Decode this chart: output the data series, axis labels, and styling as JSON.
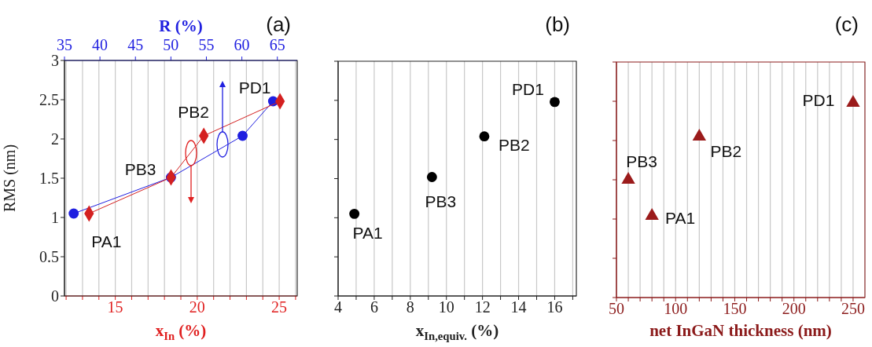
{
  "chart_data": [
    {
      "type": "scatter",
      "title": "(a)",
      "xlabel": "x$_{In}$ (%)",
      "x2label": "R (%)",
      "ylabel": "RMS (nm)",
      "xlim": [
        11.9,
        26.1
      ],
      "xticks": [
        {
          "value": 12,
          "label": null
        },
        {
          "value": 13,
          "label": null
        },
        {
          "value": 14,
          "label": null
        },
        15,
        {
          "value": 16,
          "label": null
        },
        {
          "value": 17,
          "label": null
        },
        {
          "value": 18,
          "label": null
        },
        {
          "value": 19,
          "label": null
        },
        20,
        {
          "value": 21,
          "label": null
        },
        {
          "value": 22,
          "label": null
        },
        {
          "value": 23,
          "label": null
        },
        {
          "value": 24,
          "label": null
        },
        25,
        {
          "value": 26,
          "label": null
        }
      ],
      "x2lim": [
        35,
        67.8
      ],
      "x2ticks": [
        35,
        40,
        45,
        50,
        55,
        60,
        65
      ],
      "ylim": [
        0,
        3
      ],
      "yticks": [
        0,
        0.5,
        1,
        1.5,
        2,
        2.5,
        3
      ],
      "grid": "x",
      "line_style": "solid",
      "series": [
        {
          "type": "line",
          "axis": "x2",
          "marker": "circle",
          "color": "#1f1fe0",
          "x": [
            36.3,
            50,
            60.1,
            64.4
          ],
          "values": [
            1.05,
            1.51,
            2.04,
            2.48
          ]
        },
        {
          "type": "line",
          "marker": "diamond",
          "color": "#d42020",
          "x": [
            13.4,
            18.4,
            20.4,
            25.05
          ],
          "values": [
            1.05,
            1.51,
            2.04,
            2.48
          ]
        }
      ],
      "annotations": [
        {
          "text": "PA1",
          "x": 13.4,
          "y": 1.05
        },
        {
          "text": "PB3",
          "x": 18.4,
          "y": 1.51
        },
        {
          "text": "PB2",
          "x": 20.4,
          "y": 2.04
        },
        {
          "text": "PD1",
          "x": 25.05,
          "y": 2.48
        }
      ]
    },
    {
      "type": "scatter",
      "title": "(b)",
      "xlabel": "x$_{In,equiv.}$ (%)",
      "xlim": [
        4,
        17.2
      ],
      "xticks": [
        4,
        {
          "value": 5,
          "label": null
        },
        6,
        {
          "value": 7,
          "label": null
        },
        8,
        {
          "value": 9,
          "label": null
        },
        10,
        {
          "value": 11,
          "label": null
        },
        12,
        {
          "value": 13,
          "label": null
        },
        14,
        {
          "value": 15,
          "label": null
        },
        16,
        {
          "value": 17,
          "label": null
        }
      ],
      "ylim": [
        0,
        3
      ],
      "yticks": [
        0,
        0.5,
        1,
        1.5,
        2,
        2.5,
        3
      ],
      "tick_labels": "x",
      "grid": "x",
      "series": [
        {
          "marker": "circle",
          "color": "#000000",
          "x": [
            4.9,
            9.2,
            12.1,
            16.0
          ],
          "values": [
            1.05,
            1.52,
            2.04,
            2.48
          ]
        }
      ],
      "annotations": [
        {
          "text": "PA1",
          "x": 4.9,
          "y": 1.05
        },
        {
          "text": "PB3",
          "x": 9.2,
          "y": 1.52
        },
        {
          "text": "PB2",
          "x": 12.1,
          "y": 2.04
        },
        {
          "text": "PD1",
          "x": 16.0,
          "y": 2.48
        }
      ]
    },
    {
      "type": "scatter",
      "title": "(c)",
      "xlabel": "net InGaN thickness (nm)",
      "xlim": [
        50,
        260
      ],
      "xticks": [
        50,
        {
          "value": 60,
          "label": null
        },
        {
          "value": 70,
          "label": null
        },
        {
          "value": 80,
          "label": null
        },
        {
          "value": 90,
          "label": null
        },
        100,
        {
          "value": 110,
          "label": null
        },
        {
          "value": 120,
          "label": null
        },
        {
          "value": 130,
          "label": null
        },
        {
          "value": 140,
          "label": null
        },
        150,
        {
          "value": 160,
          "label": null
        },
        {
          "value": 170,
          "label": null
        },
        {
          "value": 180,
          "label": null
        },
        {
          "value": 190,
          "label": null
        },
        200,
        {
          "value": 210,
          "label": null
        },
        {
          "value": 220,
          "label": null
        },
        {
          "value": 230,
          "label": null
        },
        {
          "value": 240,
          "label": null
        },
        250
      ],
      "ylim": [
        0,
        3
      ],
      "yticks": [
        0,
        0.5,
        1,
        1.5,
        2,
        2.5,
        3
      ],
      "tick_labels": "x",
      "grid": "x",
      "series": [
        {
          "marker": "triangle",
          "color": "#9b1b1b",
          "x": [
            60,
            80,
            120,
            250
          ],
          "values": [
            1.5,
            1.04,
            2.05,
            2.48
          ]
        }
      ],
      "annotations": [
        {
          "text": "PA1",
          "x": 80,
          "y": 1.04
        },
        {
          "text": "PB3",
          "x": 60,
          "y": 1.5
        },
        {
          "text": "PB2",
          "x": 120,
          "y": 2.05
        },
        {
          "text": "PD1",
          "x": 250,
          "y": 2.48
        }
      ]
    }
  ]
}
